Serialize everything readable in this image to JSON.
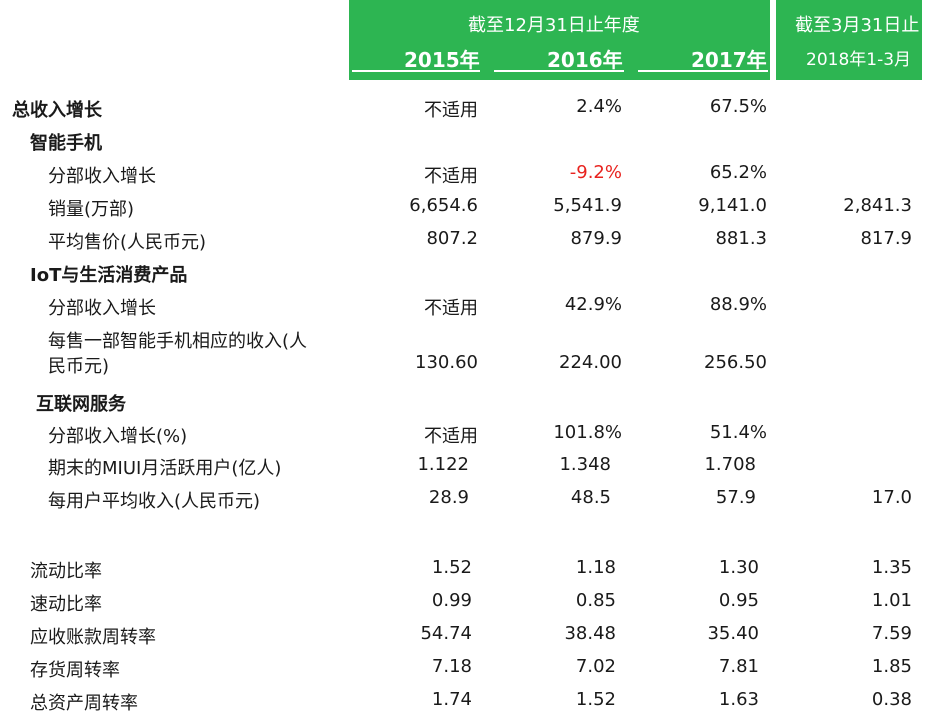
{
  "header": {
    "group1_title": "截至12月31日止年度",
    "years": [
      "2015年",
      "2016年",
      "2017年"
    ],
    "group2_title": "截至3月31日止",
    "group2_sub": "2018年1-3月"
  },
  "accent_color": "#2db552",
  "negative_color": "#e8231f",
  "rows": [
    {
      "label": "总收入增长",
      "values": [
        "不适用",
        "2.4%",
        "67.5%",
        ""
      ]
    },
    {
      "label": "智能手机",
      "values": [
        "",
        "",
        "",
        ""
      ]
    },
    {
      "label": "分部收入增长",
      "values": [
        "不适用",
        "-9.2%",
        "65.2%",
        ""
      ]
    },
    {
      "label": "销量(万部)",
      "values": [
        "6,654.6",
        "5,541.9",
        "9,141.0",
        "2,841.3"
      ]
    },
    {
      "label": "平均售价(人民币元)",
      "values": [
        "807.2",
        "879.9",
        "881.3",
        "817.9"
      ]
    },
    {
      "label": "IoT与生活消费产品",
      "values": [
        "",
        "",
        "",
        ""
      ]
    },
    {
      "label": "分部收入增长",
      "values": [
        "不适用",
        "42.9%",
        "88.9%",
        ""
      ]
    },
    {
      "label": "每售一部智能手机相应的收入(人",
      "values": [
        "",
        "",
        "",
        ""
      ]
    },
    {
      "label": "民币元)",
      "values": [
        "130.60",
        "224.00",
        "256.50",
        ""
      ]
    },
    {
      "label": "互联网服务",
      "values": [
        "",
        "",
        "",
        ""
      ]
    },
    {
      "label": "分部收入增长(%)",
      "values": [
        "不适用",
        "101.8%",
        "51.4%",
        ""
      ]
    },
    {
      "label": "期末的MIUI月活跃用户(亿人)",
      "values": [
        "1.122",
        "1.348",
        "1.708",
        ""
      ]
    },
    {
      "label": "每用户平均收入(人民币元)",
      "values": [
        "28.9",
        "48.5",
        "57.9",
        "17.0"
      ]
    },
    {
      "label": "流动比率",
      "values": [
        "1.52",
        "1.18",
        "1.30",
        "1.35"
      ]
    },
    {
      "label": "速动比率",
      "values": [
        "0.99",
        "0.85",
        "0.95",
        "1.01"
      ]
    },
    {
      "label": "应收账款周转率",
      "values": [
        "54.74",
        "38.48",
        "35.40",
        "7.59"
      ]
    },
    {
      "label": "存货周转率",
      "values": [
        "7.18",
        "7.02",
        "7.81",
        "1.85"
      ]
    },
    {
      "label": "总资产周转率",
      "values": [
        "1.74",
        "1.52",
        "1.63",
        "0.38"
      ]
    }
  ]
}
